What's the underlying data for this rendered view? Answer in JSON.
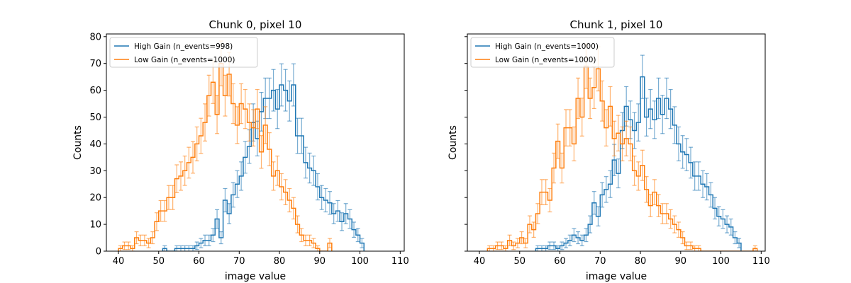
{
  "chart_data": [
    {
      "type": "step-histogram",
      "title": "Chunk 0, pixel 10",
      "xlabel": "image value",
      "ylabel": "Counts",
      "xlim": [
        37,
        111
      ],
      "ylim": [
        0,
        81
      ],
      "xticks": [
        40,
        50,
        60,
        70,
        80,
        90,
        100,
        110
      ],
      "yticks": [
        0,
        10,
        20,
        30,
        40,
        50,
        60,
        70,
        80
      ],
      "legend_position": "upper-left",
      "series": [
        {
          "name": "High Gain (n_events=998)",
          "color": "#1f77b4",
          "x_start": 51,
          "bin_width": 1,
          "values": [
            1,
            0,
            0,
            1,
            1,
            1,
            1,
            1,
            2,
            3,
            4,
            4,
            6,
            12,
            5,
            19,
            14,
            21,
            25,
            28,
            35,
            39,
            48,
            42,
            52,
            57,
            57,
            60,
            53,
            62,
            60,
            56,
            62,
            43,
            43,
            33,
            31,
            30,
            24,
            20,
            19,
            18,
            14,
            15,
            11,
            14,
            12,
            8,
            6,
            3
          ]
        },
        {
          "name": "Low Gain (n_events=1000)",
          "color": "#ff7f0e",
          "x_start": 40,
          "bin_width": 1,
          "values": [
            1,
            2,
            2,
            1,
            5,
            4,
            4,
            3,
            5,
            11,
            15,
            15,
            20,
            20,
            27,
            28,
            30,
            33,
            35,
            40,
            43,
            48,
            58,
            63,
            51,
            70,
            58,
            66,
            55,
            47,
            55,
            53,
            48,
            46,
            53,
            37,
            47,
            38,
            28,
            30,
            24,
            22,
            19,
            16,
            10,
            6,
            4,
            4,
            3,
            1,
            0,
            0,
            3
          ]
        }
      ]
    },
    {
      "type": "step-histogram",
      "title": "Chunk 1, pixel 10",
      "xlabel": "image value",
      "ylabel": "Counts",
      "xlim": [
        37,
        111
      ],
      "ylim": [
        0,
        81
      ],
      "xticks": [
        40,
        50,
        60,
        70,
        80,
        90,
        100,
        110
      ],
      "yticks": [
        0,
        10,
        20,
        30,
        40,
        50,
        60,
        70,
        80
      ],
      "legend_position": "upper-left",
      "series": [
        {
          "name": "High Gain (n_events=1000)",
          "color": "#1f77b4",
          "x_start": 54,
          "bin_width": 1,
          "values": [
            1,
            1,
            1,
            2,
            2,
            1,
            2,
            3,
            4,
            6,
            5,
            4,
            6,
            10,
            18,
            13,
            21,
            23,
            25,
            34,
            29,
            45,
            54,
            49,
            45,
            48,
            65,
            50,
            53,
            49,
            57,
            51,
            57,
            53,
            47,
            40,
            37,
            36,
            33,
            28,
            28,
            25,
            24,
            21,
            16,
            13,
            12,
            10,
            9,
            5,
            3
          ]
        },
        {
          "name": "Low Gain (n_events=1000)",
          "color": "#ff7f0e",
          "x_start": 42,
          "bin_width": 1,
          "values": [
            1,
            1,
            2,
            2,
            1,
            4,
            2,
            3,
            5,
            3,
            10,
            8,
            14,
            22,
            22,
            19,
            31,
            41,
            31,
            46,
            46,
            40,
            57,
            50,
            69,
            57,
            61,
            68,
            56,
            46,
            54,
            42,
            44,
            40,
            42,
            40,
            30,
            28,
            32,
            23,
            17,
            22,
            17,
            14,
            14,
            12,
            10,
            8,
            5,
            2,
            2,
            1,
            1,
            0,
            0,
            0,
            0,
            0,
            0,
            0,
            0,
            0,
            0,
            0,
            0,
            0,
            1
          ]
        }
      ]
    }
  ]
}
